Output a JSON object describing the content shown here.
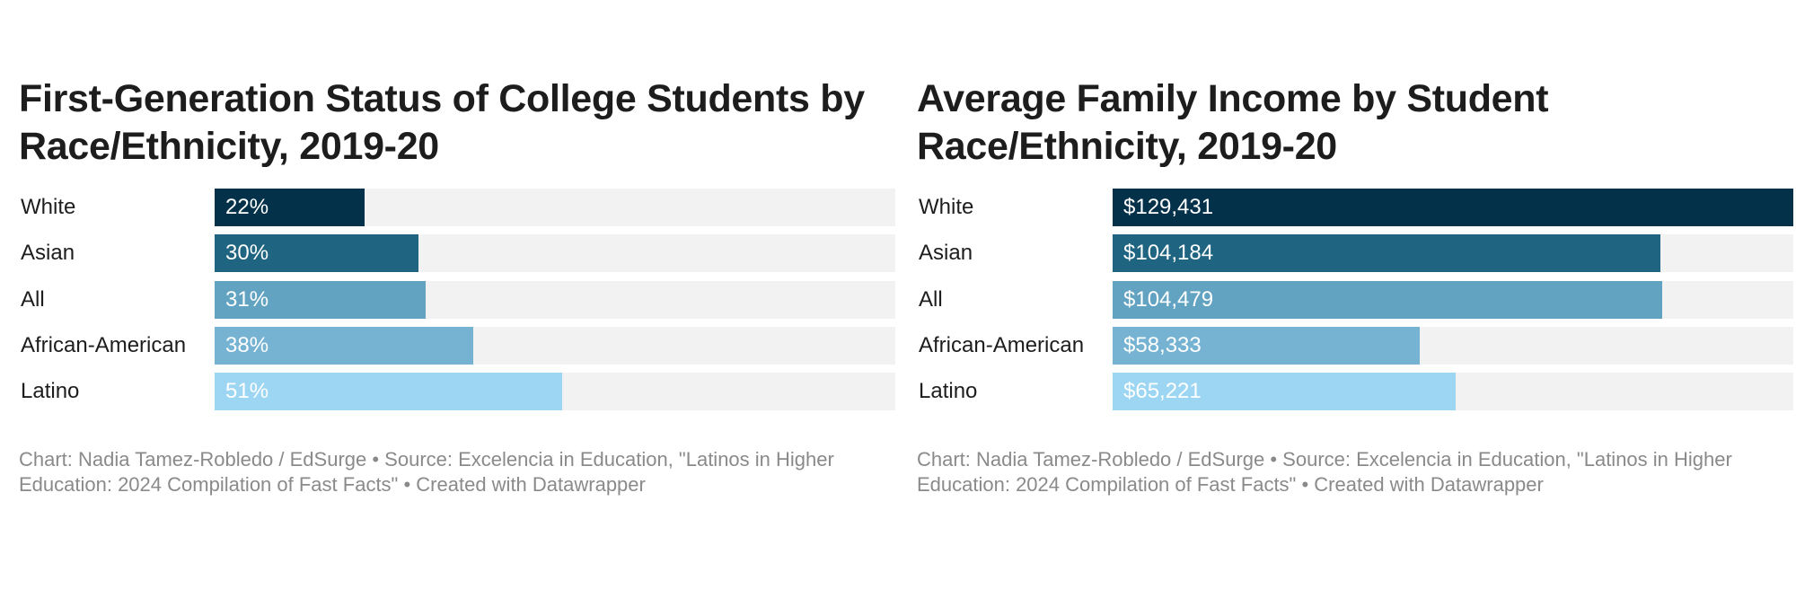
{
  "chart_data": [
    {
      "type": "bar",
      "orientation": "horizontal",
      "title": "First-Generation Status of College Students by Race/Ethnicity, 2019-20",
      "categories": [
        "White",
        "Asian",
        "All",
        "African-American",
        "Latino"
      ],
      "values": [
        22,
        30,
        31,
        38,
        51
      ],
      "value_labels": [
        "22%",
        "30%",
        "31%",
        "38%",
        "51%"
      ],
      "unit": "%",
      "xlim": [
        0,
        100
      ],
      "colors": [
        "#04314a",
        "#1f6480",
        "#62a3c1",
        "#76b3d3",
        "#9cd6f2"
      ],
      "track_color": "#f2f2f2",
      "legend": "none",
      "grid": false,
      "notes": "Chart: Nadia Tamez-Robledo / EdSurge • Source: Excelencia in Education, \"Latinos in Higher Education: 2024 Compilation of Fast Facts\" • Created with Datawrapper"
    },
    {
      "type": "bar",
      "orientation": "horizontal",
      "title": "Average Family Income by Student Race/Ethnicity, 2019-20",
      "categories": [
        "White",
        "Asian",
        "All",
        "African-American",
        "Latino"
      ],
      "values": [
        129431,
        104184,
        104479,
        58333,
        65221
      ],
      "value_labels": [
        "$129,431",
        "$104,184",
        "$104,479",
        "$58,333",
        "$65,221"
      ],
      "unit": "$",
      "xlim": [
        0,
        129431
      ],
      "colors": [
        "#04314a",
        "#1f6480",
        "#62a3c1",
        "#76b3d3",
        "#9cd6f2"
      ],
      "track_color": "#f2f2f2",
      "legend": "none",
      "grid": false,
      "notes": "Chart: Nadia Tamez-Robledo / EdSurge • Source: Excelencia in Education, \"Latinos in Higher Education: 2024 Compilation of Fast Facts\" • Created with Datawrapper"
    }
  ]
}
